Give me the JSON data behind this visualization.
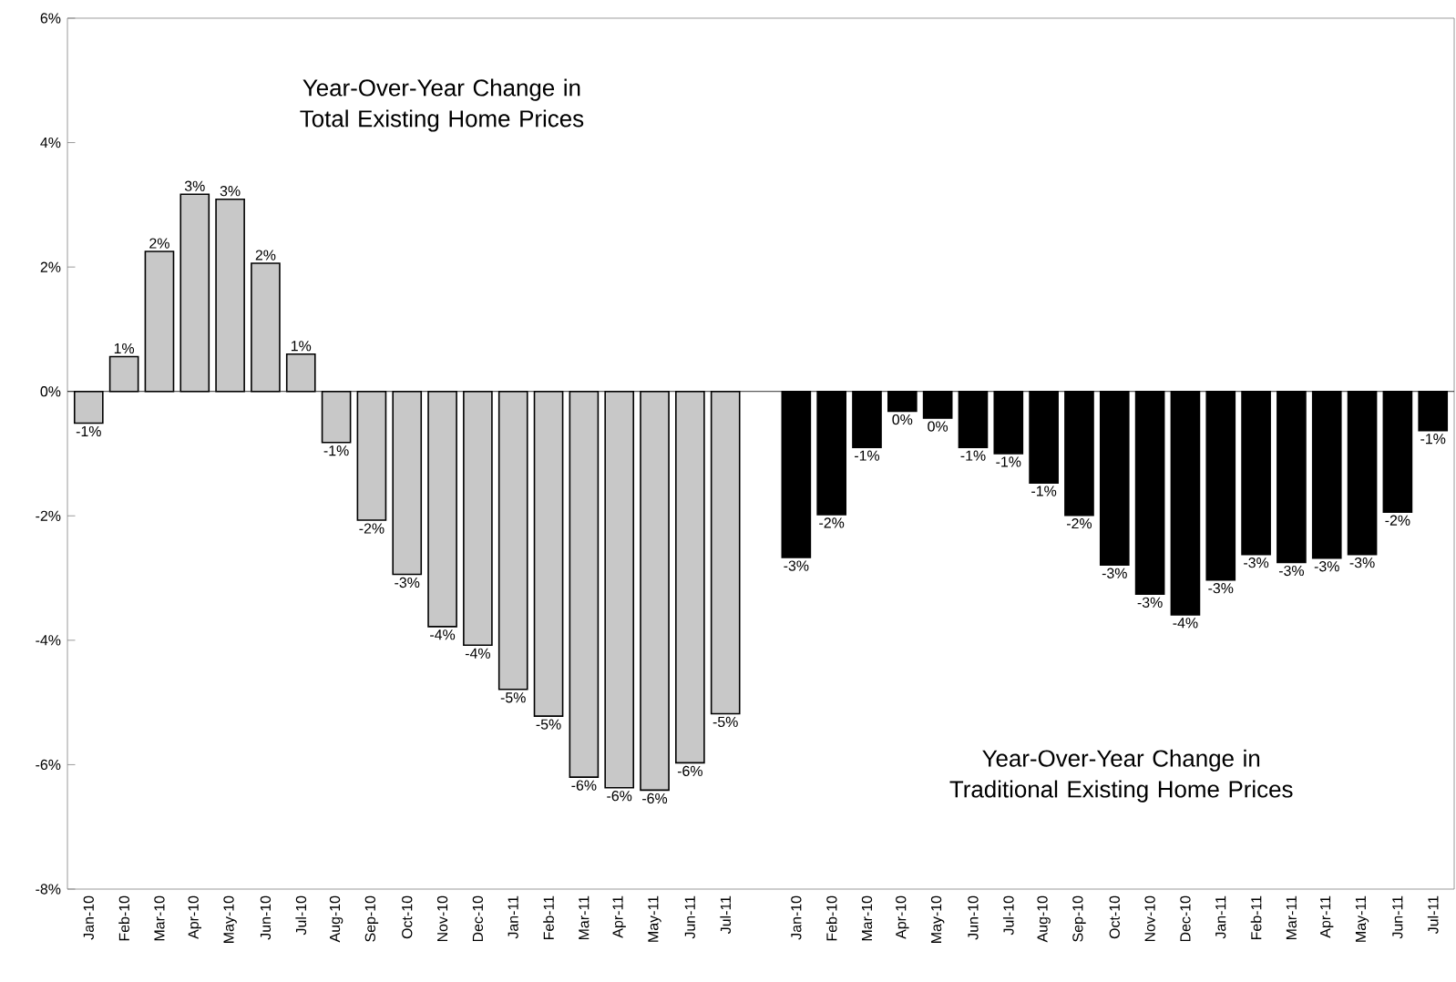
{
  "chart_data": {
    "type": "bar",
    "categories": [
      "Jan-10",
      "Feb-10",
      "Mar-10",
      "Apr-10",
      "May-10",
      "Jun-10",
      "Jul-10",
      "Aug-10",
      "Sep-10",
      "Oct-10",
      "Nov-10",
      "Dec-10",
      "Jan-11",
      "Feb-11",
      "Mar-11",
      "Apr-11",
      "May-11",
      "Jun-11",
      "Jul-11",
      null,
      "Jan-10",
      "Feb-10",
      "Mar-10",
      "Apr-10",
      "May-10",
      "Jun-10",
      "Jul-10",
      "Aug-10",
      "Sep-10",
      "Oct-10",
      "Nov-10",
      "Dec-10",
      "Jan-11",
      "Feb-11",
      "Mar-11",
      "Apr-11",
      "May-11",
      "Jun-11",
      "Jul-11"
    ],
    "series": [
      {
        "color": "#c8c8c8",
        "values": [
          -0.51,
          0.56,
          2.25,
          3.17,
          3.09,
          2.06,
          0.6,
          -0.82,
          -2.07,
          -2.94,
          -3.78,
          -4.08,
          -4.79,
          -5.22,
          -6.2,
          -6.37,
          -6.41,
          -5.97,
          -5.18,
          null,
          null,
          null,
          null,
          null,
          null,
          null,
          null,
          null,
          null,
          null,
          null,
          null,
          null,
          null,
          null,
          null,
          null,
          null,
          null
        ],
        "value_labels": [
          "-1%",
          "1%",
          "2%",
          "3%",
          "3%",
          "2%",
          "1%",
          "-1%",
          "-2%",
          "-3%",
          "-4%",
          "-4%",
          "-5%",
          "-5%",
          "-6%",
          "-6%",
          "-6%",
          "-6%",
          "-5%",
          null,
          null,
          null,
          null,
          null,
          null,
          null,
          null,
          null,
          null,
          null,
          null,
          null,
          null,
          null,
          null,
          null,
          null,
          null,
          null
        ]
      },
      {
        "color": "#000000",
        "values": [
          null,
          null,
          null,
          null,
          null,
          null,
          null,
          null,
          null,
          null,
          null,
          null,
          null,
          null,
          null,
          null,
          null,
          null,
          null,
          null,
          -2.67,
          -1.98,
          -0.9,
          -0.32,
          -0.43,
          -0.9,
          -1.0,
          -1.47,
          -1.99,
          -2.79,
          -3.26,
          -3.59,
          -3.03,
          -2.62,
          -2.75,
          -2.68,
          -2.62,
          -1.94,
          -0.63
        ],
        "value_labels": [
          null,
          null,
          null,
          null,
          null,
          null,
          null,
          null,
          null,
          null,
          null,
          null,
          null,
          null,
          null,
          null,
          null,
          null,
          null,
          null,
          "-3%",
          "-2%",
          "-1%",
          "0%",
          "0%",
          "-1%",
          "-1%",
          "-1%",
          "-2%",
          "-3%",
          "-3%",
          "-4%",
          "-3%",
          "-3%",
          "-3%",
          "-3%",
          "-3%",
          "-2%",
          "-1%"
        ]
      }
    ],
    "ylim": [
      -8,
      6
    ],
    "yticks": [
      {
        "value": -8,
        "label": "-8%"
      },
      {
        "value": -6,
        "label": "-6%"
      },
      {
        "value": -4,
        "label": "-4%"
      },
      {
        "value": -2,
        "label": "-2%"
      },
      {
        "value": 0,
        "label": "0%"
      },
      {
        "value": 2,
        "label": "2%"
      },
      {
        "value": 4,
        "label": "4%"
      },
      {
        "value": 6,
        "label": "6%"
      }
    ],
    "annotations": [
      "Year-Over-Year Change in Total Existing Home Prices",
      "Year-Over-Year Change in Traditional Existing Home Prices"
    ]
  }
}
